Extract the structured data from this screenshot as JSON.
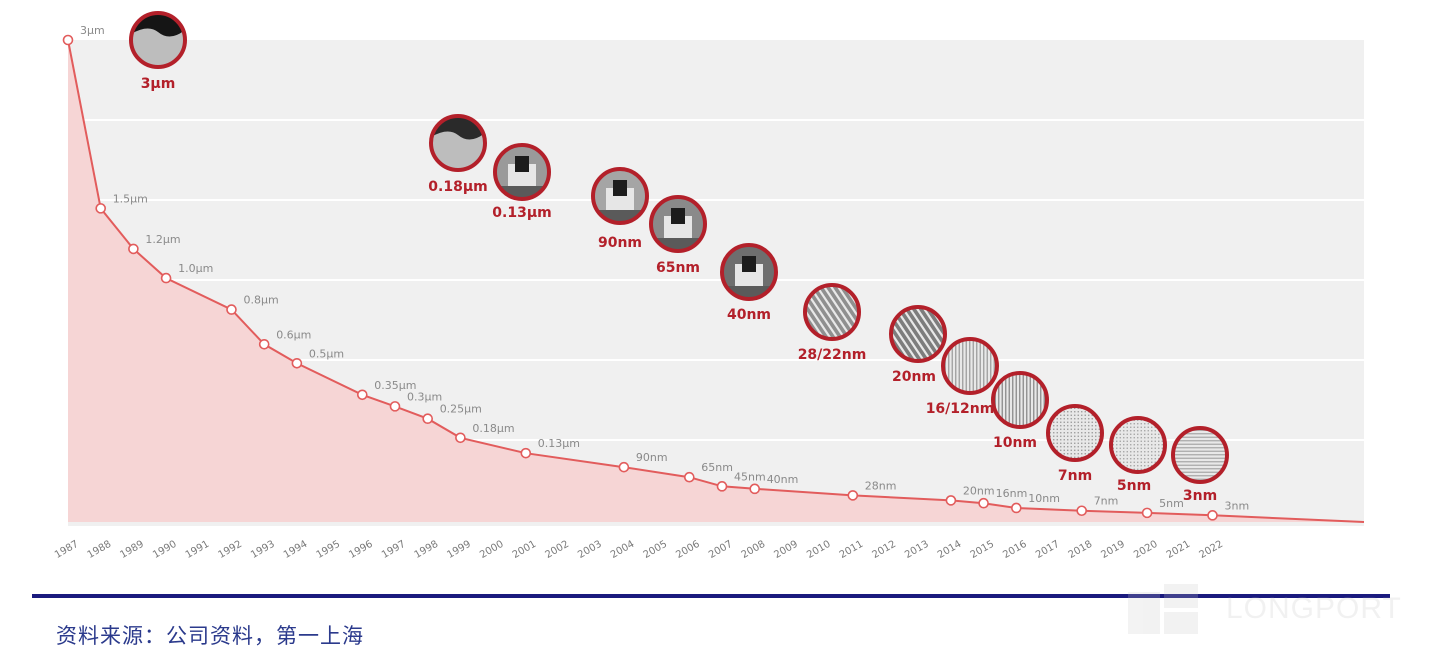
{
  "chart_data": {
    "type": "area",
    "title": "",
    "xlabel": "",
    "ylabel": "",
    "grid": true,
    "x_ticks": [
      "1987",
      "1988",
      "1989",
      "1990",
      "1991",
      "1992",
      "1993",
      "1994",
      "1995",
      "1996",
      "1997",
      "1998",
      "1999",
      "2000",
      "2001",
      "2002",
      "2003",
      "2004",
      "2005",
      "2006",
      "2007",
      "2008",
      "2009",
      "2010",
      "2011",
      "2012",
      "2013",
      "2014",
      "2015",
      "2016",
      "2017",
      "2018",
      "2019",
      "2020",
      "2021",
      "2022"
    ],
    "points": [
      {
        "year": 1987,
        "value_um": 3.0,
        "label": "3μm"
      },
      {
        "year": 1988,
        "value_um": 1.5,
        "label": "1.5μm"
      },
      {
        "year": 1989,
        "value_um": 1.2,
        "label": "1.2μm"
      },
      {
        "year": 1990,
        "value_um": 1.0,
        "label": "1.0μm"
      },
      {
        "year": 1992,
        "value_um": 0.8,
        "label": "0.8μm"
      },
      {
        "year": 1993,
        "value_um": 0.6,
        "label": "0.6μm"
      },
      {
        "year": 1994,
        "value_um": 0.5,
        "label": "0.5μm"
      },
      {
        "year": 1996,
        "value_um": 0.35,
        "label": "0.35μm"
      },
      {
        "year": 1997,
        "value_um": 0.3,
        "label": "0.3μm"
      },
      {
        "year": 1998,
        "value_um": 0.25,
        "label": "0.25μm"
      },
      {
        "year": 1999,
        "value_um": 0.18,
        "label": "0.18μm"
      },
      {
        "year": 2001,
        "value_um": 0.13,
        "label": "0.13μm"
      },
      {
        "year": 2004,
        "value_um": 0.09,
        "label": "90nm"
      },
      {
        "year": 2006,
        "value_um": 0.065,
        "label": "65nm"
      },
      {
        "year": 2007,
        "value_um": 0.045,
        "label": "45nm"
      },
      {
        "year": 2008,
        "value_um": 0.04,
        "label": "40nm"
      },
      {
        "year": 2011,
        "value_um": 0.028,
        "label": "28nm"
      },
      {
        "year": 2014,
        "value_um": 0.02,
        "label": "20nm"
      },
      {
        "year": 2015,
        "value_um": 0.016,
        "label": "16nm"
      },
      {
        "year": 2016,
        "value_um": 0.01,
        "label": "10nm"
      },
      {
        "year": 2018,
        "value_um": 0.007,
        "label": "7nm"
      },
      {
        "year": 2020,
        "value_um": 0.005,
        "label": "5nm"
      },
      {
        "year": 2022,
        "value_um": 0.003,
        "label": "3nm"
      }
    ],
    "ylim_um": [
      0,
      3
    ],
    "process_nodes": [
      {
        "label": "3μm",
        "style": "solid",
        "fill": "#151515"
      },
      {
        "label": "0.18μm",
        "style": "solid",
        "fill": "#2a2a2a"
      },
      {
        "label": "0.13μm",
        "style": "gate",
        "fill": "#9a9a9a"
      },
      {
        "label": "90nm",
        "style": "gate",
        "fill": "#a5a5a5"
      },
      {
        "label": "65nm",
        "style": "gate",
        "fill": "#8a8a8a"
      },
      {
        "label": "40nm",
        "style": "gate",
        "fill": "#6e6e6e"
      },
      {
        "label": "28/22nm",
        "style": "diagonal",
        "fill": "#8f8f8f"
      },
      {
        "label": "20nm",
        "style": "diagonal",
        "fill": "#7d7d7d"
      },
      {
        "label": "16/12nm",
        "style": "vertical",
        "fill": "#9d9d9d"
      },
      {
        "label": "10nm",
        "style": "vertical",
        "fill": "#8a8a8a"
      },
      {
        "label": "7nm",
        "style": "cross",
        "fill": "#8e8e8e"
      },
      {
        "label": "5nm",
        "style": "cross",
        "fill": "#9a9a9a"
      },
      {
        "label": "3nm",
        "style": "horizontal",
        "fill": "#a8a8a8"
      }
    ]
  },
  "colors": {
    "line": "#e25c5c",
    "area": "#f6d5d5",
    "plot_bg": "#f0f0f0",
    "node_border": "#b3202a",
    "node_label": "#b3202a"
  },
  "footer": {
    "source": "资料来源：公司资料，第一上海"
  },
  "watermark": {
    "text": "LONGPORT"
  }
}
